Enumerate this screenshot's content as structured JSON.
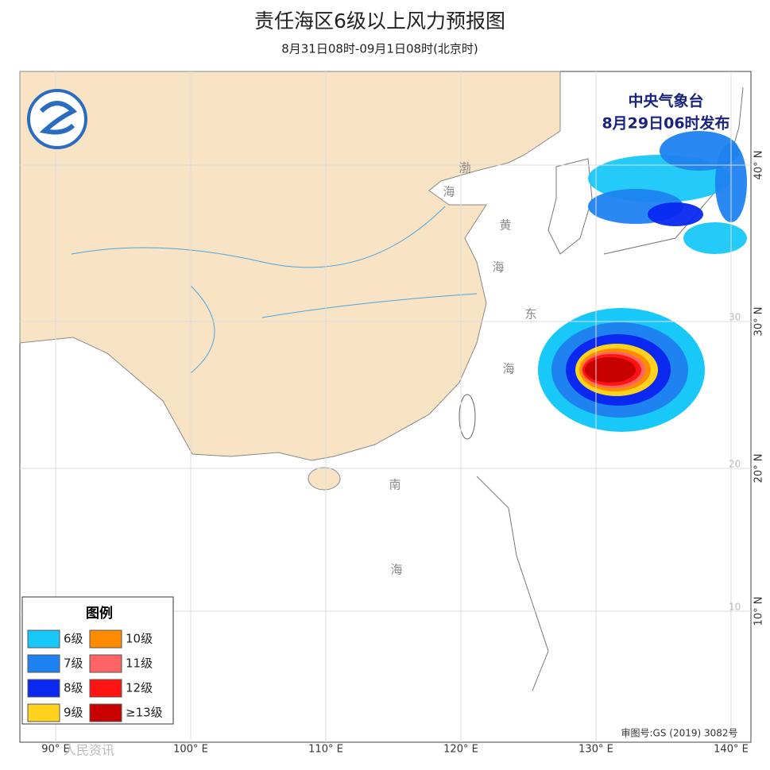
{
  "header": {
    "title": "责任海区6级以上风力预报图",
    "subtitle": "8月31日08时-09月1日08时(北京时)"
  },
  "issuer": {
    "name": "中央气象台",
    "time": "8月29日06时发布"
  },
  "legend": {
    "title": "图例",
    "items": [
      {
        "label": "6级",
        "color": "#18c8f8"
      },
      {
        "label": "7级",
        "color": "#1e82f0"
      },
      {
        "label": "8级",
        "color": "#0a28f0"
      },
      {
        "label": "9级",
        "color": "#ffd21e"
      },
      {
        "label": "10级",
        "color": "#ff8c00"
      },
      {
        "label": "11级",
        "color": "#ff6464"
      },
      {
        "label": "12级",
        "color": "#ff1414"
      },
      {
        "label": "≥13级",
        "color": "#c80000"
      }
    ]
  },
  "sea_labels": [
    "渤",
    "海",
    "黄",
    "海",
    "东",
    "海",
    "南",
    "海"
  ],
  "lon_labels": [
    "90° E",
    "100° E",
    "110° E",
    "120° E",
    "130° E",
    "140° E"
  ],
  "lat_labels": [
    "40° N",
    "30° N",
    "20° N",
    "10° N"
  ],
  "grid_labels": [
    "30",
    "20",
    "10"
  ],
  "approval": "审图号:GS (2019) 3082号",
  "watermark": "人民资讯"
}
